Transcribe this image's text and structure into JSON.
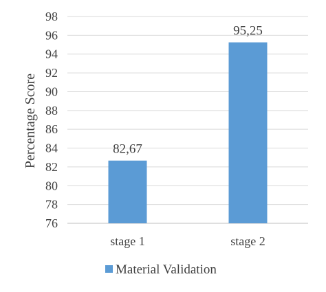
{
  "chart_data": {
    "type": "bar",
    "categories": [
      "stage 1",
      "stage 2"
    ],
    "series": [
      {
        "name": "Material Validation",
        "values": [
          82.67,
          95.25
        ],
        "color": "#5b9bd5"
      }
    ],
    "data_labels": [
      "82,67",
      "95,25"
    ],
    "title": "",
    "xlabel": "",
    "ylabel": "Percentage Score",
    "ylim": [
      76,
      98
    ],
    "yticks": [
      76,
      78,
      80,
      82,
      84,
      86,
      88,
      90,
      92,
      94,
      96,
      98
    ],
    "grid": true,
    "legend_position": "bottom"
  }
}
